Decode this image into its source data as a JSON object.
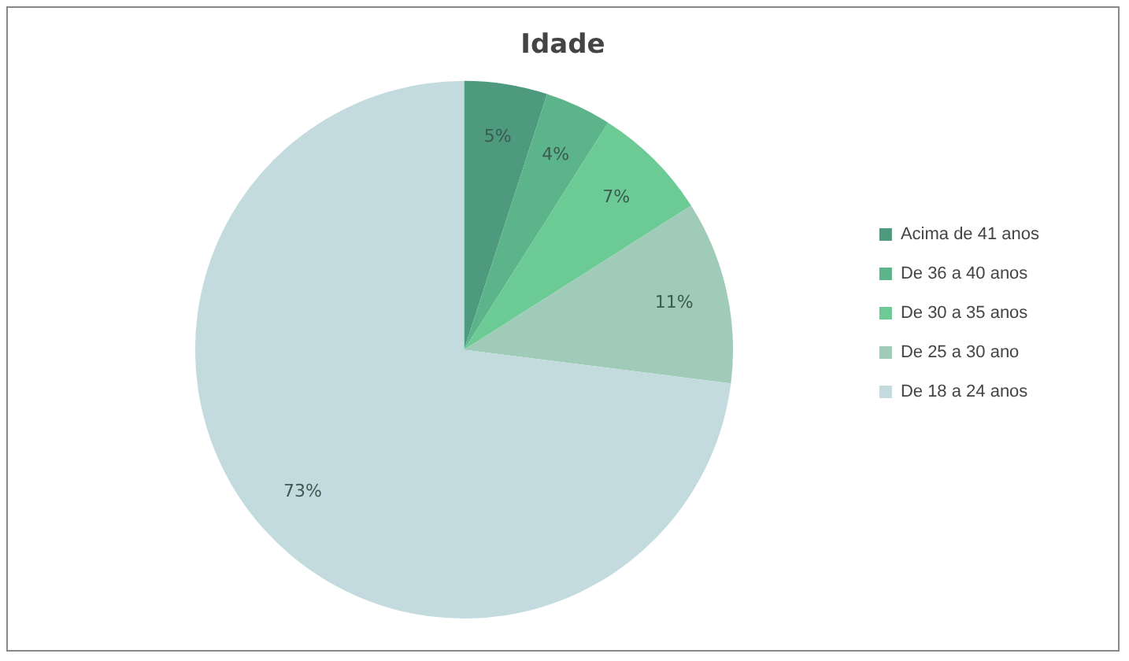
{
  "chart_data": {
    "type": "pie",
    "title": "Idade",
    "categories": [
      "Acima de 41 anos",
      "De 36 a 40 anos",
      "De 30 a 35 anos",
      "De 25 a 30 ano",
      "De 18 a 24 anos"
    ],
    "values": [
      5,
      4,
      7,
      11,
      73
    ],
    "colors": [
      "#4e9a7e",
      "#5cb48a",
      "#6ccb94",
      "#9fcbb8",
      "#c3dbdf"
    ],
    "value_labels": [
      "5%",
      "4%",
      "7%",
      "11%",
      "73%"
    ],
    "legend": "right"
  }
}
